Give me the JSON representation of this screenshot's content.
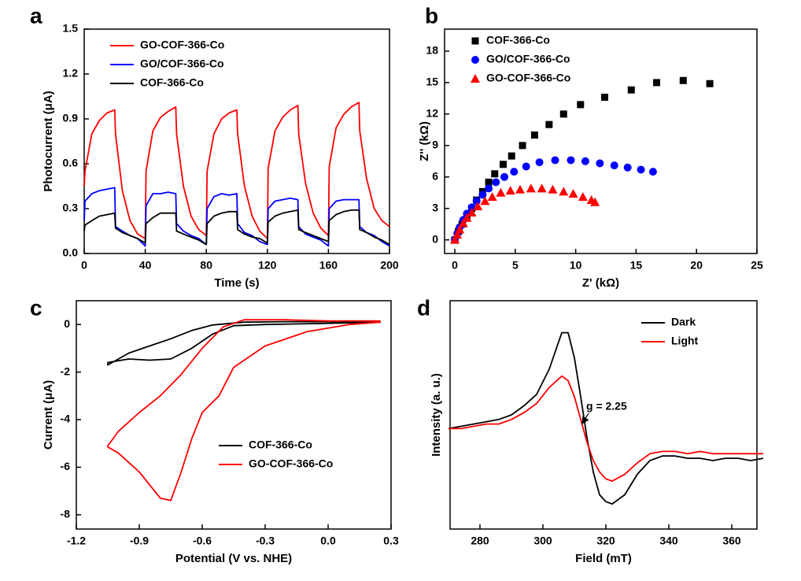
{
  "chart_data": [
    {
      "type": "line",
      "panel": "a",
      "xlabel": "Time (s)",
      "ylabel": "Photocurrent (μA)",
      "xlim": [
        0,
        200
      ],
      "ylim": [
        0,
        1.5
      ],
      "xticks": [
        0,
        40,
        80,
        120,
        160,
        200
      ],
      "yticks": [
        {
          "value": 0,
          "label": "0.0"
        },
        0.3,
        0.6,
        0.9,
        1.2,
        1.5
      ],
      "x": [
        0,
        0.5,
        5,
        10,
        15,
        20,
        20.5,
        25,
        30,
        35,
        40,
        40.5,
        45,
        50,
        55,
        60,
        60.5,
        65,
        70,
        75,
        80,
        80.5,
        85,
        90,
        95,
        100,
        100.5,
        105,
        110,
        115,
        120,
        120.5,
        125,
        130,
        135,
        140,
        140.5,
        145,
        150,
        155,
        160,
        160.5,
        165,
        170,
        175,
        180,
        180.5,
        185,
        190,
        195,
        200
      ],
      "series": [
        {
          "name": "GO-COF-366-Co",
          "color": "#ff0000",
          "values": [
            0.45,
            0.55,
            0.8,
            0.89,
            0.94,
            0.96,
            0.8,
            0.42,
            0.22,
            0.13,
            0.1,
            0.55,
            0.82,
            0.91,
            0.95,
            0.98,
            0.8,
            0.45,
            0.25,
            0.16,
            0.12,
            0.55,
            0.8,
            0.9,
            0.94,
            0.96,
            0.8,
            0.45,
            0.25,
            0.15,
            0.1,
            0.57,
            0.82,
            0.91,
            0.96,
            0.99,
            0.8,
            0.47,
            0.27,
            0.17,
            0.12,
            0.58,
            0.84,
            0.93,
            0.98,
            1.01,
            0.82,
            0.5,
            0.3,
            0.22,
            0.18
          ]
        },
        {
          "name": "GO/COF-366-Co",
          "color": "#0000ff",
          "values": [
            0.22,
            0.35,
            0.4,
            0.42,
            0.43,
            0.44,
            0.18,
            0.15,
            0.12,
            0.1,
            0.05,
            0.32,
            0.4,
            0.4,
            0.41,
            0.4,
            0.2,
            0.15,
            0.12,
            0.1,
            0.06,
            0.3,
            0.38,
            0.4,
            0.39,
            0.4,
            0.2,
            0.14,
            0.12,
            0.08,
            0.06,
            0.3,
            0.35,
            0.36,
            0.37,
            0.36,
            0.18,
            0.13,
            0.11,
            0.09,
            0.05,
            0.3,
            0.35,
            0.36,
            0.36,
            0.36,
            0.18,
            0.14,
            0.12,
            0.08,
            0.05
          ]
        },
        {
          "name": "COF-366-Co",
          "color": "#000000",
          "values": [
            0.15,
            0.19,
            0.22,
            0.25,
            0.26,
            0.27,
            0.17,
            0.14,
            0.12,
            0.1,
            0.07,
            0.2,
            0.24,
            0.27,
            0.27,
            0.27,
            0.15,
            0.13,
            0.11,
            0.09,
            0.06,
            0.2,
            0.25,
            0.27,
            0.28,
            0.28,
            0.16,
            0.13,
            0.11,
            0.1,
            0.07,
            0.21,
            0.25,
            0.27,
            0.28,
            0.29,
            0.16,
            0.14,
            0.12,
            0.1,
            0.08,
            0.22,
            0.26,
            0.28,
            0.29,
            0.29,
            0.16,
            0.14,
            0.11,
            0.09,
            0.06
          ]
        }
      ]
    },
    {
      "type": "scatter",
      "panel": "b",
      "xlabel": "Z' (kΩ)",
      "ylabel": "Z'' (kΩ)",
      "xlim": [
        -0.85,
        25
      ],
      "ylim": [
        -1.3,
        20.1
      ],
      "xticks": [
        0,
        5,
        10,
        15,
        20,
        25
      ],
      "yticks": [
        0,
        3,
        6,
        9,
        12,
        15,
        18
      ],
      "series": [
        {
          "name": "COF-366-Co",
          "color": "#000000",
          "marker": "square",
          "x": [
            0,
            0.3,
            0.6,
            1,
            1.4,
            1.8,
            2.3,
            2.8,
            3.3,
            4,
            4.7,
            5.6,
            6.6,
            7.8,
            9,
            10.4,
            12.4,
            14.6,
            16.7,
            18.9,
            21.1
          ],
          "values": [
            0,
            0.8,
            1.5,
            2.3,
            3,
            3.8,
            4.6,
            5.5,
            6.3,
            7.2,
            8,
            9,
            10,
            11,
            12,
            12.9,
            13.6,
            14.3,
            15,
            15.2,
            14.9
          ]
        },
        {
          "name": "GO/COF-366-Co",
          "color": "#0000ff",
          "marker": "circle",
          "x": [
            0,
            0.2,
            0.4,
            0.7,
            1,
            1.4,
            1.8,
            2.3,
            2.8,
            3.4,
            4.1,
            4.9,
            5.9,
            7,
            8.3,
            9.6,
            10.8,
            12,
            13.2,
            14.3,
            15.4,
            16.4
          ],
          "values": [
            0,
            0.6,
            1.2,
            1.9,
            2.5,
            3.1,
            3.7,
            4.3,
            4.9,
            5.5,
            6,
            6.5,
            7,
            7.4,
            7.6,
            7.6,
            7.5,
            7.3,
            7.1,
            6.9,
            6.7,
            6.5
          ]
        },
        {
          "name": "GO-COF-366-Co",
          "color": "#ff0000",
          "marker": "triangle",
          "x": [
            0,
            0.2,
            0.4,
            0.7,
            1,
            1.4,
            1.9,
            2.5,
            3.1,
            3.8,
            4.6,
            5.4,
            6.3,
            7.2,
            8.1,
            9,
            9.8,
            10.6,
            11.3,
            11.6
          ],
          "values": [
            0,
            0.5,
            1,
            1.6,
            2.1,
            2.6,
            3.2,
            3.7,
            4.1,
            4.5,
            4.7,
            4.8,
            4.9,
            4.9,
            4.8,
            4.6,
            4.4,
            4.1,
            3.8,
            3.6
          ]
        }
      ]
    },
    {
      "type": "line",
      "panel": "c",
      "xlabel": "Potential (V vs. NHE)",
      "ylabel": "Current (μA)",
      "xlim": [
        -1.2,
        0.3
      ],
      "ylim": [
        -8.6,
        1.0
      ],
      "xticks": [
        -1.2,
        -0.9,
        -0.6,
        -0.3,
        {
          "value": 0,
          "label": "0.0"
        },
        0.3
      ],
      "yticks": [
        0,
        -2,
        -4,
        -6,
        -8
      ],
      "series": [
        {
          "name": "COF-366-Co",
          "color": "#000000",
          "x": [
            0.25,
            0,
            -0.3,
            -0.45,
            -0.55,
            -0.65,
            -0.75,
            -0.85,
            -0.95,
            -1.05,
            -1.05,
            -0.95,
            -0.85,
            -0.75,
            -0.65,
            -0.55,
            -0.4,
            -0.2,
            0,
            0.25
          ],
          "values": [
            0.1,
            0.05,
            0,
            -0.05,
            -0.4,
            -1.0,
            -1.45,
            -1.5,
            -1.45,
            -1.6,
            -1.7,
            -1.2,
            -0.9,
            -0.6,
            -0.25,
            -0.02,
            0.1,
            0.12,
            0.12,
            0.1
          ]
        },
        {
          "name": "GO-COF-366-Co",
          "color": "#ff0000",
          "x": [
            0.25,
            0.1,
            -0.1,
            -0.3,
            -0.45,
            -0.52,
            -0.6,
            -0.65,
            -0.7,
            -0.75,
            -0.8,
            -0.9,
            -1.0,
            -1.05,
            -1.05,
            -1.0,
            -0.9,
            -0.8,
            -0.7,
            -0.6,
            -0.5,
            -0.4,
            -0.2,
            0,
            0.25
          ],
          "values": [
            0.1,
            0,
            -0.3,
            -0.9,
            -1.8,
            -3.0,
            -3.7,
            -4.8,
            -6.2,
            -7.4,
            -7.3,
            -6.2,
            -5.4,
            -5.15,
            -5.1,
            -4.5,
            -3.7,
            -3.0,
            -2.1,
            -1.0,
            -0.1,
            0.2,
            0.2,
            0.15,
            0.15
          ]
        }
      ]
    },
    {
      "type": "line",
      "panel": "d",
      "xlabel": "Field (mT)",
      "ylabel": "Intensity (a. u.)",
      "annotation": "g = 2.25",
      "xlim": [
        270.5,
        368
      ],
      "ylim": [
        0,
        100
      ],
      "xticks": [
        280,
        300,
        320,
        340,
        360
      ],
      "x": [
        270,
        274,
        278,
        282,
        286,
        290,
        294,
        298,
        302,
        306,
        308,
        310,
        312,
        314,
        316,
        318,
        320,
        322,
        326,
        330,
        334,
        338,
        342,
        346,
        350,
        354,
        358,
        362,
        366,
        370
      ],
      "series": [
        {
          "name": "Dark",
          "color": "#000000",
          "values": [
            44,
            45,
            46,
            47,
            48,
            50,
            54,
            59,
            70,
            86,
            86,
            75,
            58,
            40,
            25,
            15,
            12,
            11,
            15,
            24,
            30,
            32,
            32,
            31,
            31,
            30,
            31,
            31,
            30,
            31
          ]
        },
        {
          "name": "Light",
          "color": "#ff0000",
          "values": [
            44,
            44,
            45,
            46,
            46,
            48,
            51,
            55,
            62,
            67,
            65,
            58,
            48,
            38,
            30,
            25,
            22,
            21,
            24,
            29,
            33,
            34,
            34,
            33,
            34,
            33,
            33,
            33,
            33,
            33
          ]
        }
      ]
    }
  ]
}
